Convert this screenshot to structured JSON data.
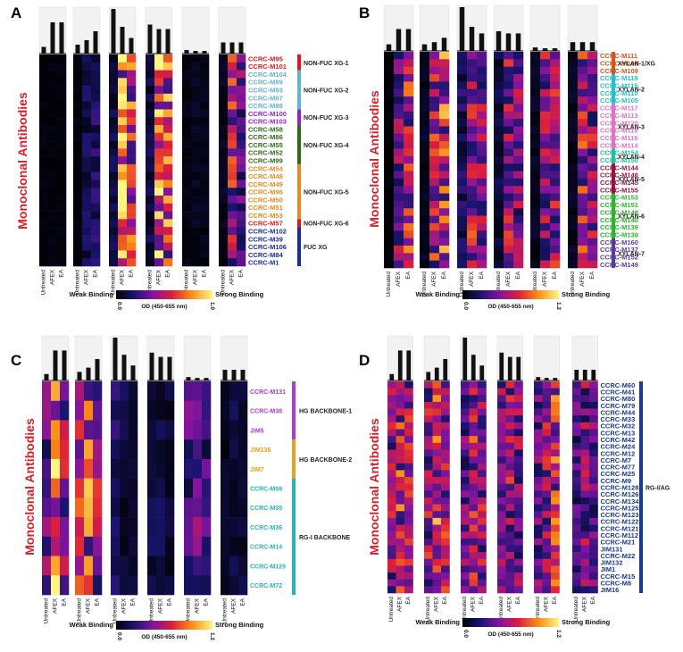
{
  "figure": {
    "colorbar": {
      "weak_label": "Weak Binding",
      "strong_label": "Strong Binding",
      "od_label": "OD (450-655 nm)",
      "min_label": "0.0"
    },
    "ylabel": "Monoclonal Antibodies",
    "treatment_labels": [
      "Untreated",
      "AFEX",
      "EA"
    ]
  },
  "chart_data": [
    {
      "panel": "A",
      "type": "heatmap",
      "colorbar_max": "1.0",
      "colorbar_range": [
        0,
        1.0
      ],
      "rows": [
        {
          "label": "CCRC-M95",
          "color": "#e8141c"
        },
        {
          "label": "CCRC-M101",
          "color": "#e8141c"
        },
        {
          "label": "CCRC-M104",
          "color": "#5fb3d8"
        },
        {
          "label": "CCRC-M89",
          "color": "#5fb3d8"
        },
        {
          "label": "CCRC-M93",
          "color": "#5fb3d8"
        },
        {
          "label": "CCRC-M87",
          "color": "#5fb3d8"
        },
        {
          "label": "CCRC-M88",
          "color": "#5fb3d8"
        },
        {
          "label": "CCRC-M100",
          "color": "#9a1fc8"
        },
        {
          "label": "CCRC-M103",
          "color": "#9a1fc8"
        },
        {
          "label": "CCRC-M58",
          "color": "#2e6b14"
        },
        {
          "label": "CCRC-M86",
          "color": "#2e6b14"
        },
        {
          "label": "CCRC-M55",
          "color": "#2e6b14"
        },
        {
          "label": "CCRC-M52",
          "color": "#2e6b14"
        },
        {
          "label": "CCRC-M99",
          "color": "#2e6b14"
        },
        {
          "label": "CCRC-M54",
          "color": "#e88a20"
        },
        {
          "label": "CCRC-M48",
          "color": "#e88a20"
        },
        {
          "label": "CCRC-M49",
          "color": "#e88a20"
        },
        {
          "label": "CCRC-M96",
          "color": "#e88a20"
        },
        {
          "label": "CCRC-M50",
          "color": "#e88a20"
        },
        {
          "label": "CCRC-M51",
          "color": "#e88a20"
        },
        {
          "label": "CCRC-M53",
          "color": "#e88a20"
        },
        {
          "label": "CCRC-M57",
          "color": "#e8141c"
        },
        {
          "label": "CCRC-M102",
          "color": "#1a2aa0"
        },
        {
          "label": "CCRC-M39",
          "color": "#1a2aa0"
        },
        {
          "label": "CCRC-M106",
          "color": "#1a2aa0"
        },
        {
          "label": "CCRC-M84",
          "color": "#1a2aa0"
        },
        {
          "label": "CCRC-M1",
          "color": "#1a2aa0"
        }
      ],
      "groups": [
        {
          "label": "NON-FUC XG-1",
          "color": "#e8141c",
          "start": 0,
          "end": 1
        },
        {
          "label": "NON-FUC XG-2",
          "color": "#5fb3d8",
          "start": 2,
          "end": 6
        },
        {
          "label": "NON-FUC XG-3",
          "color": "#9a1fc8",
          "start": 7,
          "end": 8
        },
        {
          "label": "NON-FUC XG-4",
          "color": "#2e6b14",
          "start": 9,
          "end": 13
        },
        {
          "label": "NON-FUC XG-5",
          "color": "#e88a20",
          "start": 14,
          "end": 20
        },
        {
          "label": "NON-FUC XG-6",
          "color": "#e8141c",
          "start": 21,
          "end": 21
        },
        {
          "label": "FUC XG",
          "color": "#1a2aa0",
          "start": 22,
          "end": 26
        }
      ],
      "profiles": [
        [
          0.02,
          0.02,
          0.02
        ],
        [
          0.02,
          0.12,
          0.15
        ],
        [
          0.1,
          0.68,
          0.55
        ],
        [
          0.1,
          0.78,
          0.62
        ],
        [
          0.03,
          0.05,
          0.04
        ],
        [
          0.05,
          0.45,
          0.3
        ]
      ],
      "bar_heights": [
        [
          0.15,
          0.7,
          0.7
        ],
        [
          0.2,
          0.3,
          0.5
        ],
        [
          1.0,
          0.6,
          0.35
        ],
        [
          0.65,
          0.55,
          0.55
        ],
        [
          0.08,
          0.06,
          0.06
        ],
        [
          0.25,
          0.25,
          0.25
        ]
      ]
    },
    {
      "panel": "B",
      "type": "heatmap",
      "colorbar_max": "1.2",
      "colorbar_range": [
        0,
        1.2
      ],
      "rows": [
        {
          "label": "CCRC-M111",
          "color": "#d9541a"
        },
        {
          "label": "CCRC-M108",
          "color": "#d9541a"
        },
        {
          "label": "CCRC-M109",
          "color": "#d9541a"
        },
        {
          "label": "CCRC-M119",
          "color": "#22c1cf"
        },
        {
          "label": "CCRC-M115",
          "color": "#22c1cf"
        },
        {
          "label": "CCRC-M110",
          "color": "#22c1cf"
        },
        {
          "label": "CCRC-M105",
          "color": "#22c1cf"
        },
        {
          "label": "CCRC-M117",
          "color": "#e070c8"
        },
        {
          "label": "CCRC-M113",
          "color": "#e070c8"
        },
        {
          "label": "CCRC-M120",
          "color": "#e070c8"
        },
        {
          "label": "CCRC-M118",
          "color": "#e070c8"
        },
        {
          "label": "CCRC-M116",
          "color": "#e070c8"
        },
        {
          "label": "CCRC-M114",
          "color": "#e070c8"
        },
        {
          "label": "CCRC-M154",
          "color": "#22c1a0"
        },
        {
          "label": "CCRC-M150",
          "color": "#22c1a0"
        },
        {
          "label": "CCRC-M144",
          "color": "#9a1040"
        },
        {
          "label": "CCRC-M146",
          "color": "#9a1040"
        },
        {
          "label": "CCRC-M145",
          "color": "#9a1040"
        },
        {
          "label": "CCRC-M155",
          "color": "#9a1040"
        },
        {
          "label": "CCRC-M153",
          "color": "#2ab52a"
        },
        {
          "label": "CCRC-M151",
          "color": "#2ab52a"
        },
        {
          "label": "CCRC-M148",
          "color": "#2ab52a"
        },
        {
          "label": "CCRC-M140",
          "color": "#2ab52a"
        },
        {
          "label": "CCRC-M139",
          "color": "#2ab52a"
        },
        {
          "label": "CCRC-M138",
          "color": "#2ab52a"
        },
        {
          "label": "CCRC-M160",
          "color": "#5a3aa0"
        },
        {
          "label": "CCRC-M137",
          "color": "#5a3aa0"
        },
        {
          "label": "CCRC-M152",
          "color": "#5a3aa0"
        },
        {
          "label": "CCRC-M149",
          "color": "#5a3aa0"
        }
      ],
      "groups": [
        {
          "label": "XYLAN-1/XG",
          "color": "#d9541a",
          "start": 0,
          "end": 2
        },
        {
          "label": "XYLAN-2",
          "color": "#22c1cf",
          "start": 3,
          "end": 6
        },
        {
          "label": "XYLAN-3",
          "color": "#e070c8",
          "start": 7,
          "end": 12
        },
        {
          "label": "XYLAN-4",
          "color": "#22c1a0",
          "start": 13,
          "end": 14
        },
        {
          "label": "XYLAN-5",
          "color": "#9a1040",
          "start": 15,
          "end": 18
        },
        {
          "label": "XYLAN-6",
          "color": "#2ab52a",
          "start": 19,
          "end": 24
        },
        {
          "label": "XYLAN-7",
          "color": "#5a3aa0",
          "start": 25,
          "end": 28
        }
      ],
      "profiles": [
        [
          0.02,
          0.35,
          0.5
        ],
        [
          0.05,
          0.45,
          0.55
        ],
        [
          0.15,
          0.45,
          0.4
        ],
        [
          0.1,
          0.4,
          0.35
        ],
        [
          0.05,
          0.4,
          0.4
        ],
        [
          0.05,
          0.45,
          0.4
        ]
      ],
      "bar_heights": [
        [
          0.15,
          0.5,
          0.5
        ],
        [
          0.15,
          0.2,
          0.3
        ],
        [
          1.0,
          0.55,
          0.4
        ],
        [
          0.45,
          0.4,
          0.4
        ],
        [
          0.08,
          0.06,
          0.06
        ],
        [
          0.2,
          0.2,
          0.2
        ]
      ]
    },
    {
      "panel": "C",
      "type": "heatmap",
      "colorbar_max": "1.2",
      "colorbar_range": [
        0,
        1.2
      ],
      "rows": [
        {
          "label": "CCRC-M131",
          "color": "#b03ad8"
        },
        {
          "label": "CCRC-M38",
          "color": "#b03ad8"
        },
        {
          "label": "JIM5",
          "color": "#b03ad8"
        },
        {
          "label": "JIM136",
          "color": "#e8a21e"
        },
        {
          "label": "JIM7",
          "color": "#e8a21e"
        },
        {
          "label": "CCRC-M69",
          "color": "#2ab5b5"
        },
        {
          "label": "CCRC-M35",
          "color": "#2ab5b5"
        },
        {
          "label": "CCRC-M36",
          "color": "#2ab5b5"
        },
        {
          "label": "CCRC-M14",
          "color": "#2ab5b5"
        },
        {
          "label": "CCRC-M129",
          "color": "#2ab5b5"
        },
        {
          "label": "CCRC-M72",
          "color": "#2ab5b5"
        }
      ],
      "groups": [
        {
          "label": "HG BACKBONE-1",
          "color": "#b03ad8",
          "start": 0,
          "end": 2
        },
        {
          "label": "HG BACKBONE-2",
          "color": "#e8a21e",
          "start": 3,
          "end": 4
        },
        {
          "label": "RG-I BACKBONE",
          "color": "#2ab5b5",
          "start": 5,
          "end": 10
        }
      ],
      "profiles": [
        [
          0.3,
          0.65,
          0.45
        ],
        [
          0.5,
          0.6,
          0.4
        ],
        [
          0.15,
          0.1,
          0.08
        ],
        [
          0.1,
          0.1,
          0.08
        ],
        [
          0.25,
          0.3,
          0.25
        ],
        [
          0.05,
          0.1,
          0.08
        ]
      ],
      "bar_heights": [
        [
          0.15,
          0.7,
          0.7
        ],
        [
          0.2,
          0.3,
          0.5
        ],
        [
          1.0,
          0.6,
          0.35
        ],
        [
          0.65,
          0.55,
          0.55
        ],
        [
          0.08,
          0.06,
          0.06
        ],
        [
          0.25,
          0.25,
          0.25
        ]
      ]
    },
    {
      "panel": "D",
      "type": "heatmap",
      "colorbar_max": "1.2",
      "colorbar_range": [
        0,
        1.2
      ],
      "rows": [
        {
          "label": "CCRC-M60",
          "color": "#1a3a8a"
        },
        {
          "label": "CCRC-M41",
          "color": "#1a3a8a"
        },
        {
          "label": "CCRC-M80",
          "color": "#1a3a8a"
        },
        {
          "label": "CCRC-M79",
          "color": "#1a3a8a"
        },
        {
          "label": "CCRC-M44",
          "color": "#1a3a8a"
        },
        {
          "label": "CCRC-M33",
          "color": "#1a3a8a"
        },
        {
          "label": "CCRC-M32",
          "color": "#1a3a8a"
        },
        {
          "label": "CCRC-M13",
          "color": "#1a3a8a"
        },
        {
          "label": "CCRC-M42",
          "color": "#1a3a8a"
        },
        {
          "label": "CCRC-M24",
          "color": "#1a3a8a"
        },
        {
          "label": "CCRC-M12",
          "color": "#1a3a8a"
        },
        {
          "label": "CCRC-M7",
          "color": "#1a3a8a"
        },
        {
          "label": "CCRC-M77",
          "color": "#1a3a8a"
        },
        {
          "label": "CCRC-M25",
          "color": "#1a3a8a"
        },
        {
          "label": "CCRC-M9",
          "color": "#1a3a8a"
        },
        {
          "label": "CCRC-M128",
          "color": "#1a3a8a"
        },
        {
          "label": "CCRC-M126",
          "color": "#1a3a8a"
        },
        {
          "label": "CCRC-M134",
          "color": "#1a3a8a"
        },
        {
          "label": "CCRC-M125",
          "color": "#1a3a8a"
        },
        {
          "label": "CCRC-M123",
          "color": "#1a3a8a"
        },
        {
          "label": "CCRC-M122",
          "color": "#1a3a8a"
        },
        {
          "label": "CCRC-M121",
          "color": "#1a3a8a"
        },
        {
          "label": "CCRC-M112",
          "color": "#1a3a8a"
        },
        {
          "label": "CCRC-M21",
          "color": "#1a3a8a"
        },
        {
          "label": "JIM131",
          "color": "#1a3a8a"
        },
        {
          "label": "CCRC-M22",
          "color": "#1a3a8a"
        },
        {
          "label": "JIM132",
          "color": "#1a3a8a"
        },
        {
          "label": "JIM1",
          "color": "#1a3a8a"
        },
        {
          "label": "CCRC-M15",
          "color": "#1a3a8a"
        },
        {
          "label": "CCRC-M8",
          "color": "#1a3a8a"
        },
        {
          "label": "JIM16",
          "color": "#1a3a8a"
        }
      ],
      "groups": [
        {
          "label": "RG-I/AG",
          "color": "#1a3a8a",
          "start": 0,
          "end": 30
        }
      ],
      "profiles": [
        [
          0.4,
          0.5,
          0.45
        ],
        [
          0.4,
          0.55,
          0.45
        ],
        [
          0.3,
          0.45,
          0.4
        ],
        [
          0.35,
          0.4,
          0.35
        ],
        [
          0.3,
          0.4,
          0.5
        ],
        [
          0.25,
          0.35,
          0.3
        ]
      ],
      "bar_heights": [
        [
          0.15,
          0.7,
          0.7
        ],
        [
          0.2,
          0.3,
          0.5
        ],
        [
          1.0,
          0.6,
          0.35
        ],
        [
          0.65,
          0.55,
          0.55
        ],
        [
          0.08,
          0.06,
          0.06
        ],
        [
          0.25,
          0.25,
          0.25
        ]
      ]
    }
  ]
}
